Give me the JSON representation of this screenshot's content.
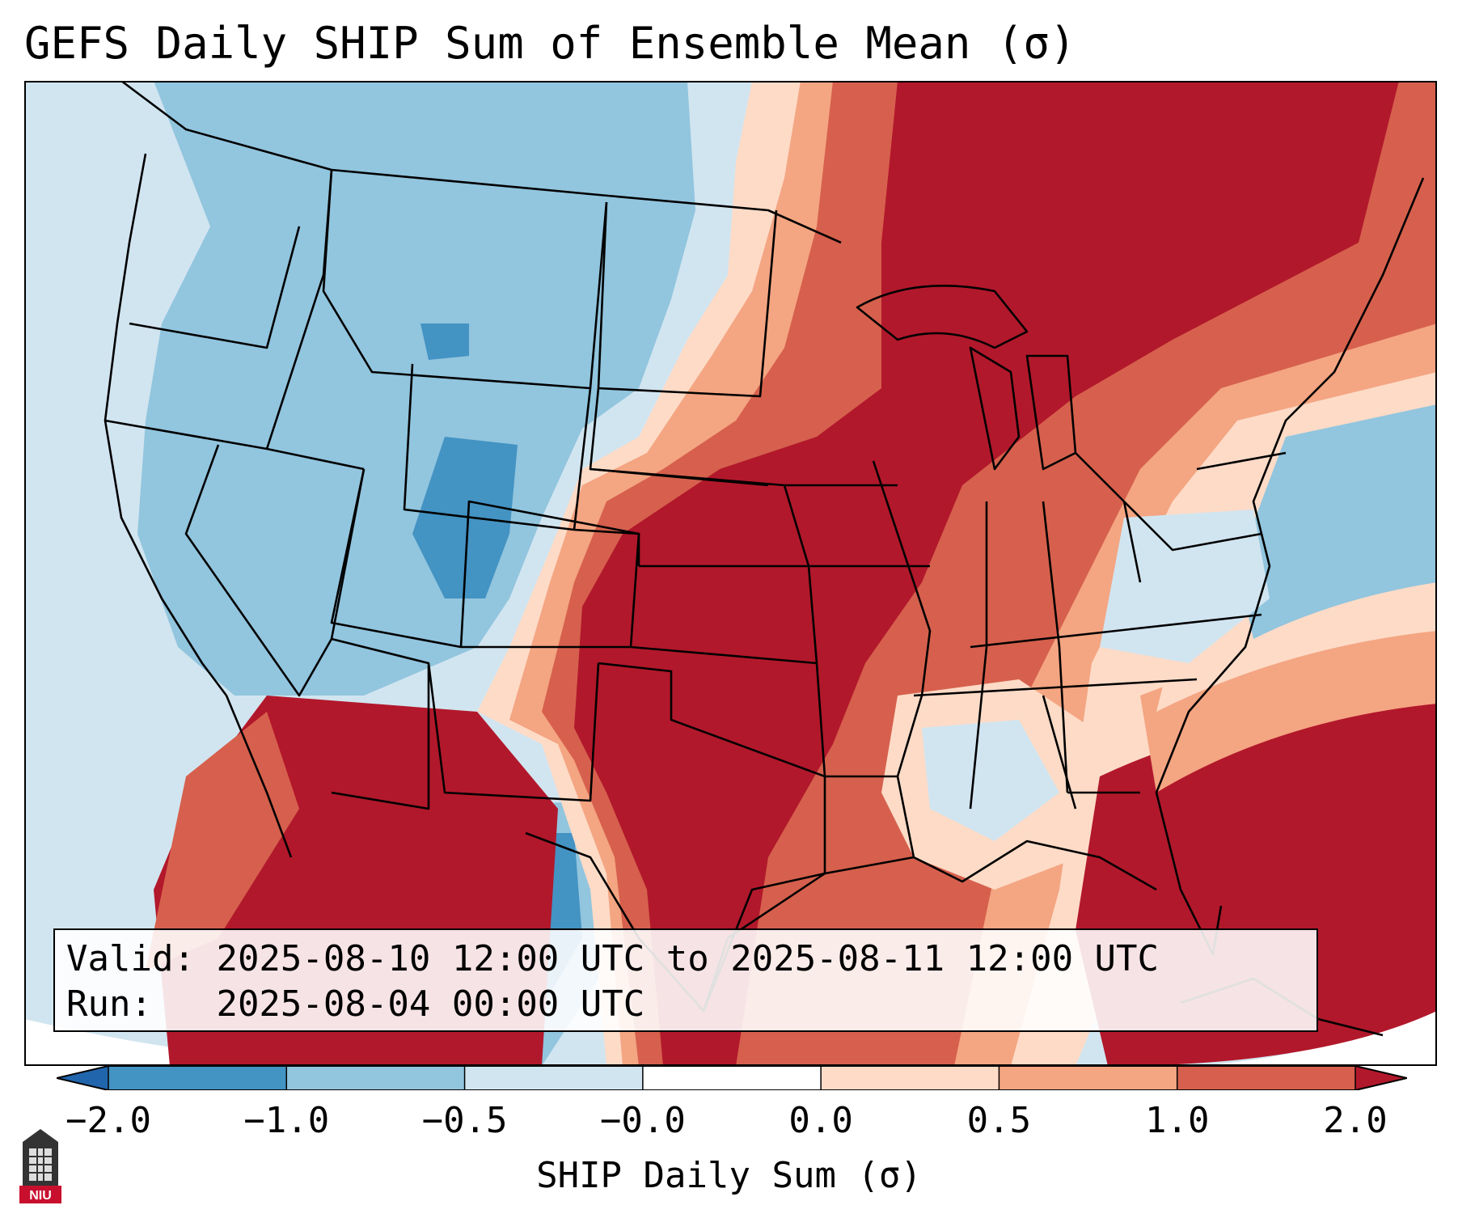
{
  "title": "GEFS Daily SHIP Sum of Ensemble Mean (σ)",
  "info": {
    "valid_label": "Valid:",
    "valid_value": "2025-08-10 12:00 UTC to 2025-08-11 12:00 UTC",
    "run_label": "Run:",
    "run_value": "2025-08-04 00:00 UTC"
  },
  "colorbar": {
    "label": "SHIP Daily Sum (σ)",
    "ticks": [
      "−2.0",
      "−1.0",
      "−0.5",
      "−0.0",
      "0.0",
      "0.5",
      "1.0",
      "2.0"
    ],
    "bin_colors": [
      "#2166ac",
      "#4393c3",
      "#92c5de",
      "#d1e5f0",
      "#ffffff",
      "#fddbc7",
      "#f4a582",
      "#d6604d",
      "#b2182b"
    ],
    "extend": "both"
  },
  "logo": {
    "text": "NIU"
  }
}
